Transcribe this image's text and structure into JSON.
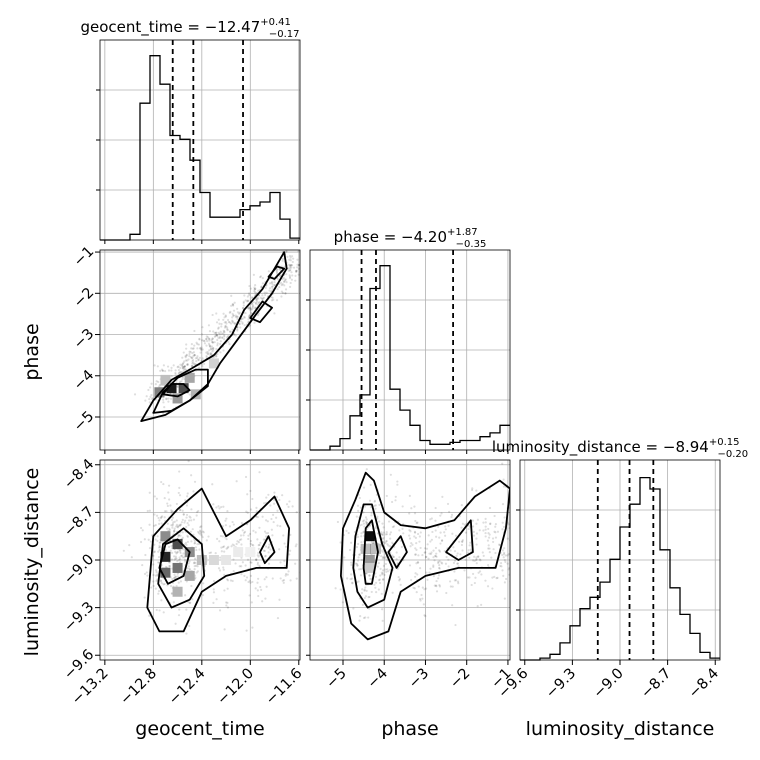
{
  "chart_data": {
    "type": "corner",
    "parameters": [
      {
        "name": "geocent_time",
        "label": "geocent_time",
        "title_main": "geocent_time = −12.47",
        "title_plus": "+0.41",
        "title_minus": "−0.17",
        "median": -12.47,
        "q_low": -12.64,
        "q_high": -12.06,
        "range": [
          -13.24,
          -11.59
        ],
        "ticks": [
          -13.2,
          -12.8,
          -12.4,
          -12.0,
          -11.6
        ],
        "tick_labels": [
          "−13.2",
          "−12.8",
          "−12.4",
          "−12.0",
          "−11.6"
        ]
      },
      {
        "name": "phase",
        "label": "phase",
        "title_main": "phase = −4.20",
        "title_plus": "+1.87",
        "title_minus": "−0.35",
        "median": -4.2,
        "q_low": -4.55,
        "q_high": -2.33,
        "range": [
          -5.8,
          -0.95
        ],
        "ticks": [
          -5,
          -4,
          -3,
          -2,
          -1
        ],
        "tick_labels": [
          "−5",
          "−4",
          "−3",
          "−2",
          "−1"
        ]
      },
      {
        "name": "luminosity_distance",
        "label": "luminosity_distance",
        "title_main": "luminosity_distance = −8.94",
        "title_plus": "+0.15",
        "title_minus": "−0.20",
        "median": -8.94,
        "q_low": -9.14,
        "q_high": -8.79,
        "range": [
          -9.63,
          -8.37
        ],
        "ticks": [
          -9.6,
          -9.3,
          -9.0,
          -8.7,
          -8.4
        ],
        "tick_labels": [
          "−9.6",
          "−9.3",
          "−9.0",
          "−8.7",
          "−8.4"
        ]
      }
    ],
    "histograms": [
      {
        "param": "geocent_time",
        "counts": [
          0,
          0,
          0,
          0.03,
          0.72,
          0.97,
          0.82,
          0.55,
          0.53,
          0.42,
          0.25,
          0.12,
          0.12,
          0.12,
          0.16,
          0.18,
          0.2,
          0.25,
          0.11,
          0.01
        ]
      },
      {
        "param": "phase",
        "counts": [
          0,
          0,
          0.02,
          0.06,
          0.18,
          0.29,
          0.85,
          0.97,
          0.32,
          0.21,
          0.13,
          0.05,
          0.03,
          0.03,
          0.04,
          0.05,
          0.05,
          0.07,
          0.09,
          0.13
        ]
      },
      {
        "param": "luminosity_distance",
        "counts": [
          0,
          0,
          0.01,
          0.03,
          0.09,
          0.18,
          0.27,
          0.33,
          0.41,
          0.53,
          0.7,
          0.82,
          0.96,
          0.9,
          0.58,
          0.38,
          0.24,
          0.14,
          0.04,
          0.01
        ]
      }
    ],
    "pairs": [
      {
        "x": "geocent_time",
        "y": "phase"
      },
      {
        "x": "geocent_time",
        "y": "luminosity_distance"
      },
      {
        "x": "phase",
        "y": "luminosity_distance"
      }
    ],
    "grid": true
  }
}
